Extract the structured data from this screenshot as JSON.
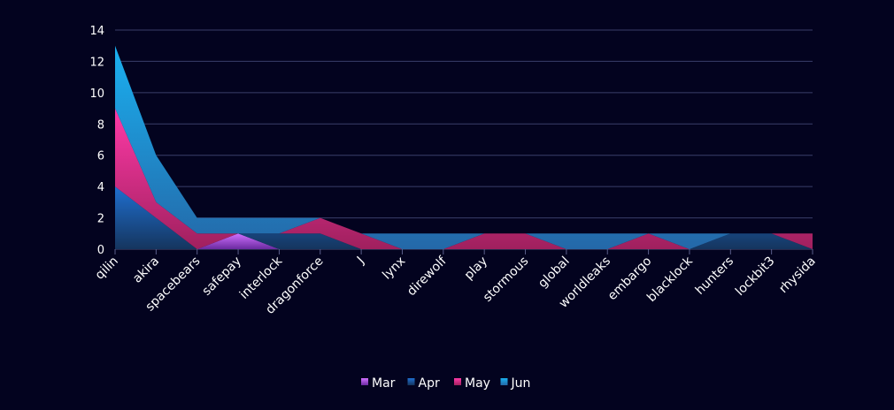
{
  "chart_data": {
    "type": "area",
    "stacked": true,
    "categories": [
      "qilin",
      "akira",
      "spacebears",
      "safepay",
      "interlock",
      "dragonforce",
      "J",
      "lynx",
      "direwolf",
      "play",
      "stormous",
      "global",
      "worldleaks",
      "embargo",
      "blacklock",
      "hunters",
      "lockbit3",
      "rhysida"
    ],
    "series": [
      {
        "name": "Mar",
        "color": "#c455f0",
        "values": [
          0,
          0,
          0,
          1,
          0,
          0,
          0,
          0,
          0,
          0,
          0,
          0,
          0,
          0,
          0,
          0,
          0,
          0
        ]
      },
      {
        "name": "Apr",
        "color": "#1c5aa8",
        "values": [
          4,
          2,
          0,
          0,
          1,
          1,
          0,
          0,
          0,
          0,
          0,
          0,
          0,
          0,
          0,
          1,
          1,
          0
        ]
      },
      {
        "name": "May",
        "color": "#ff2e9a",
        "values": [
          5,
          1,
          1,
          0,
          0,
          1,
          1,
          0,
          0,
          1,
          1,
          0,
          0,
          1,
          0,
          0,
          0,
          1
        ]
      },
      {
        "name": "Jun",
        "color": "#2a8ee0",
        "values": [
          4,
          3,
          1,
          1,
          1,
          0,
          0,
          1,
          1,
          0,
          0,
          1,
          1,
          0,
          1,
          0,
          0,
          0
        ]
      }
    ],
    "ylim": [
      0,
      14
    ],
    "yticks": [
      0,
      2,
      4,
      6,
      8,
      10,
      12,
      14
    ],
    "grid": true,
    "legend_position": "bottom"
  }
}
